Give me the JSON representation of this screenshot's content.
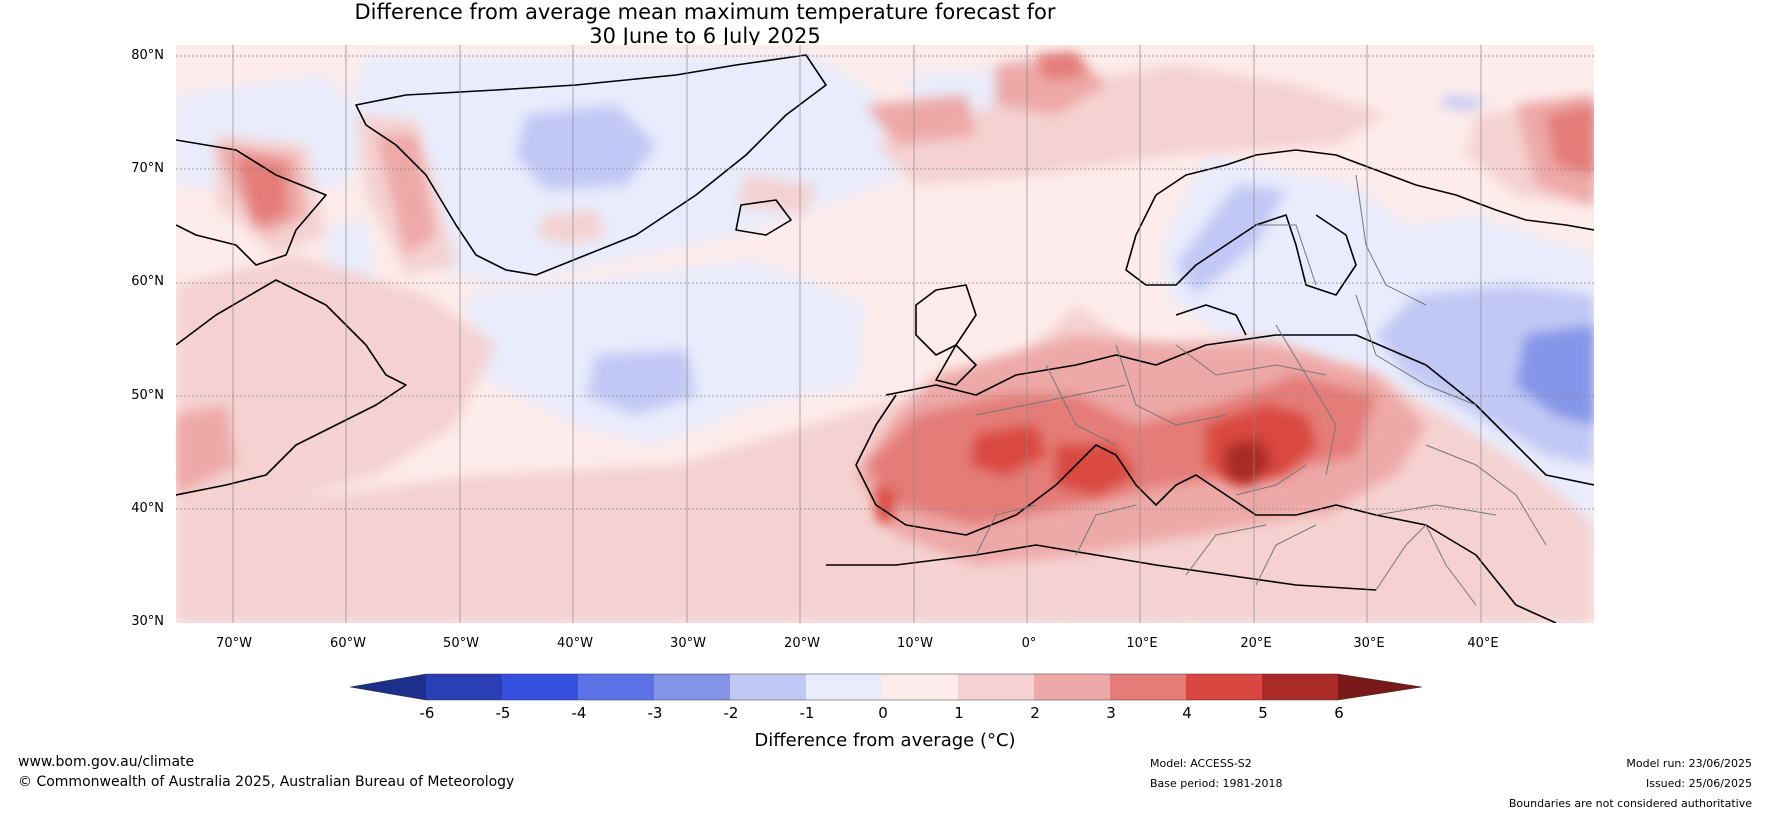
{
  "title": {
    "line1": "Difference from average mean maximum temperature forecast for",
    "line2": "30 June to 6 July 2025"
  },
  "map": {
    "lat_ticks": [
      "80°N",
      "70°N",
      "60°N",
      "50°N",
      "40°N",
      "30°N"
    ],
    "lon_ticks": [
      "70°W",
      "60°W",
      "50°W",
      "40°W",
      "30°W",
      "20°W",
      "10°W",
      "0°",
      "10°E",
      "20°E",
      "30°E",
      "40°E"
    ],
    "extent": {
      "lon_min": -75,
      "lon_max": 50,
      "lat_min": 30,
      "lat_max": 81
    }
  },
  "colorbar": {
    "ticks": [
      "-6",
      "-5",
      "-4",
      "-3",
      "-2",
      "-1",
      "0",
      "1",
      "2",
      "3",
      "4",
      "5",
      "6"
    ],
    "colors": [
      "#1c2f8a",
      "#2a3fb4",
      "#3450dc",
      "#5a72e6",
      "#8494e8",
      "#c1c8f5",
      "#e9ecfc",
      "#fdeceb",
      "#f5d2d1",
      "#eda9a7",
      "#e47c78",
      "#d94840",
      "#a92a26",
      "#7a1a18"
    ],
    "label": "Difference from average (°C)"
  },
  "footer": {
    "website": "www.bom.gov.au/climate",
    "copyright": "© Commonwealth of Australia 2025, Australian Bureau of Meteorology",
    "model": "Model: ACCESS-S2",
    "base_period": "Base period: 1981-2018",
    "model_run": "Model run: 23/06/2025",
    "issued": "Issued: 25/06/2025",
    "disclaimer": "Boundaries are not considered authoritative"
  }
}
